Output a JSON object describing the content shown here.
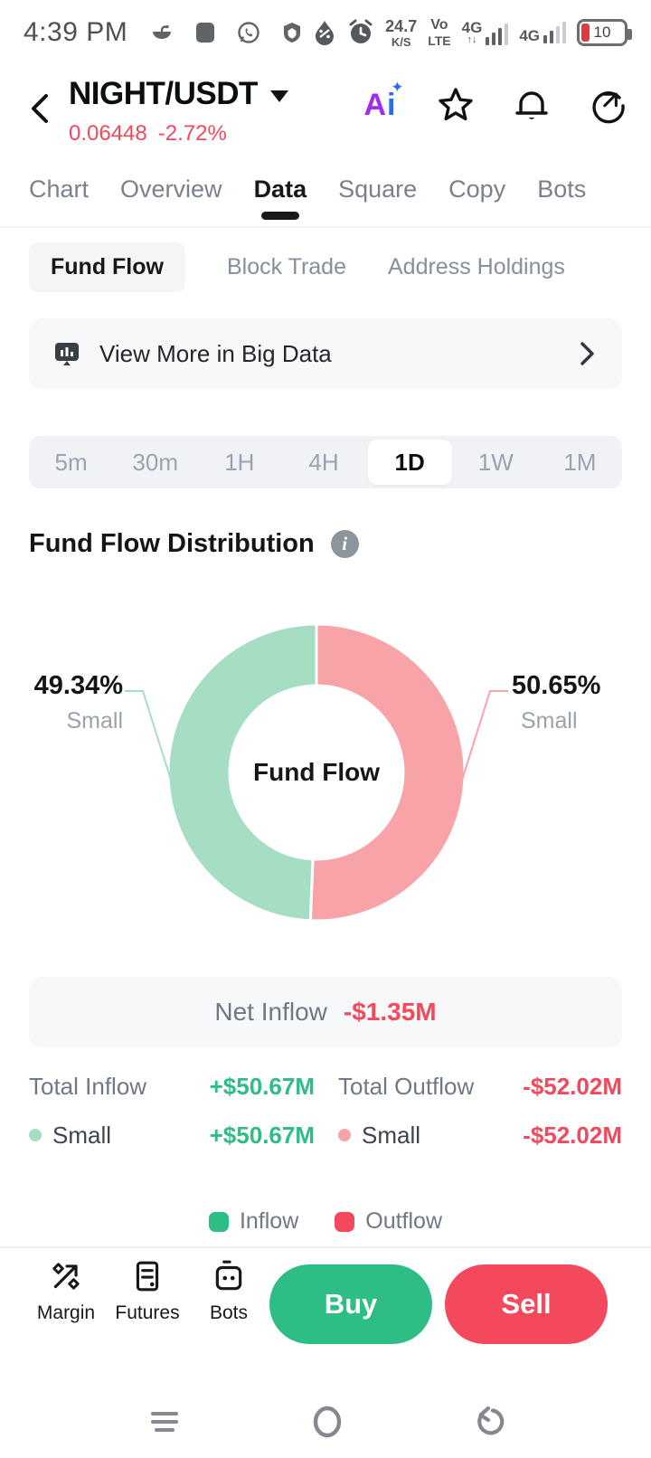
{
  "status_bar": {
    "time": "4:39 PM",
    "net_speed": {
      "value": "24.7",
      "unit": "K/S"
    },
    "volte": {
      "line1": "Vo",
      "line2": "LTE"
    },
    "sim1_label": "4G",
    "sim1_arrows": "↑↓",
    "sim2_label": "4G",
    "battery_level": "10"
  },
  "header": {
    "pair": "NIGHT/USDT",
    "price": "0.06448",
    "change": "-2.72%",
    "ai_a": "A",
    "ai_i": "i",
    "ai_spark": "✦"
  },
  "nav_tabs": {
    "items": [
      {
        "label": "Chart",
        "active": false
      },
      {
        "label": "Overview",
        "active": false
      },
      {
        "label": "Data",
        "active": true
      },
      {
        "label": "Square",
        "active": false
      },
      {
        "label": "Copy",
        "active": false
      },
      {
        "label": "Bots",
        "active": false
      }
    ]
  },
  "sub_tabs": {
    "items": [
      {
        "label": "Fund Flow",
        "active": true
      },
      {
        "label": "Block Trade",
        "active": false
      },
      {
        "label": "Address Holdings",
        "active": false
      }
    ]
  },
  "banner": {
    "label": "View More in Big Data"
  },
  "timeframes": {
    "items": [
      {
        "label": "5m",
        "active": false
      },
      {
        "label": "30m",
        "active": false
      },
      {
        "label": "1H",
        "active": false
      },
      {
        "label": "4H",
        "active": false
      },
      {
        "label": "1D",
        "active": true
      },
      {
        "label": "1W",
        "active": false
      },
      {
        "label": "1M",
        "active": false
      }
    ]
  },
  "section": {
    "title": "Fund Flow Distribution"
  },
  "chart_data": {
    "type": "pie",
    "donut": true,
    "title": "Fund Flow Distribution",
    "center_label": "Fund Flow",
    "start_angle_deg": 0,
    "direction": "clockwise",
    "legend_position": "none",
    "slices": [
      {
        "name": "outflow-small",
        "side": "right",
        "callout_percent": "50.65%",
        "callout_label": "Small",
        "value_percent": 50.65,
        "color": "#f8a3a8"
      },
      {
        "name": "inflow-small",
        "side": "left",
        "callout_percent": "49.34%",
        "callout_label": "Small",
        "value_percent": 49.34,
        "color": "#a5dec2"
      }
    ]
  },
  "summary": {
    "net_inflow": {
      "label": "Net Inflow",
      "value": "-$1.35M"
    },
    "rows": [
      {
        "left_label": "Total Inflow",
        "left_value": "+$50.67M",
        "right_label": "Total Outflow",
        "right_value": "-$52.02M"
      },
      {
        "left_label": "Small",
        "left_value": "+$50.67M",
        "right_label": "Small",
        "right_value": "-$52.02M"
      }
    ],
    "legend": [
      {
        "label": "Inflow",
        "color": "#2ebd85"
      },
      {
        "label": "Outflow",
        "color": "#f4485c"
      }
    ]
  },
  "action_bar": {
    "shortcuts": [
      {
        "label": "Margin"
      },
      {
        "label": "Futures"
      },
      {
        "label": "Bots"
      }
    ],
    "buy_label": "Buy",
    "sell_label": "Sell"
  },
  "colors": {
    "up_green": "#2ebd85",
    "down_red": "#f4485c",
    "inflow_soft": "#a5dec2",
    "outflow_soft": "#f8a3a8"
  }
}
